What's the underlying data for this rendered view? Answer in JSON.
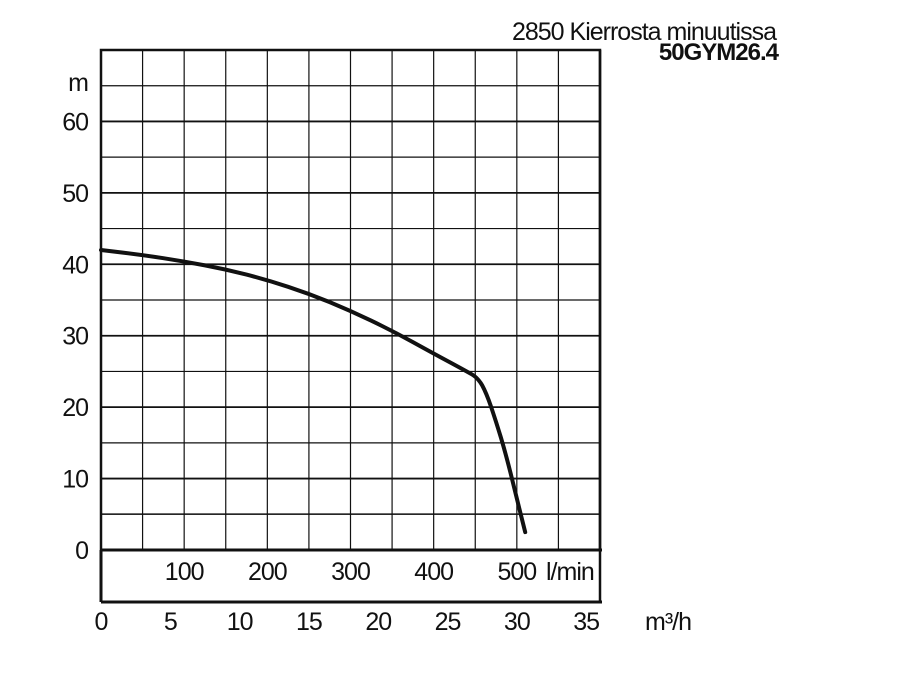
{
  "chart_data": {
    "type": "line",
    "title": "2850 Kierrosta minuutissa",
    "model": "50GYM26.4",
    "ylabel": "m",
    "xlabel_lpm": "l/min",
    "xlabel_m3h": "m³/h",
    "ylim": [
      0,
      70
    ],
    "xlim_m3h": [
      0,
      36
    ],
    "yticks": [
      "0",
      "10",
      "20",
      "30",
      "40",
      "50",
      "60"
    ],
    "xticks_lpm": [
      "100",
      "200",
      "300",
      "400",
      "500"
    ],
    "xticks_m3h": [
      "0",
      "5",
      "10",
      "15",
      "20",
      "25",
      "30",
      "35"
    ],
    "grid": true,
    "series": [
      {
        "points_m3h": [
          [
            0,
            42
          ],
          [
            3,
            41.3
          ],
          [
            6,
            40.4
          ],
          [
            9,
            39.3
          ],
          [
            12,
            37.8
          ],
          [
            15,
            35.9
          ],
          [
            18,
            33.5
          ],
          [
            21,
            30.7
          ],
          [
            24,
            27.5
          ],
          [
            26.3,
            25.1
          ],
          [
            27.2,
            24.1
          ],
          [
            27.8,
            22
          ],
          [
            28.5,
            18
          ],
          [
            29.2,
            13.5
          ],
          [
            29.9,
            8
          ],
          [
            30.6,
            2.5
          ]
        ]
      }
    ]
  }
}
